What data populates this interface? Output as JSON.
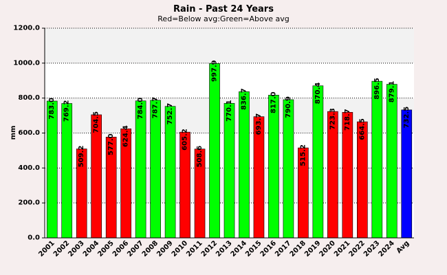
{
  "chart_data": {
    "type": "bar",
    "title": "Rain - Past 24 Years",
    "subtitle": "Red=Below avg:Green=Above avg",
    "xlabel": "",
    "ylabel": "mm",
    "ylim": [
      0,
      1200
    ],
    "yticks": [
      "0.0",
      "200.0",
      "400.0",
      "600.0",
      "800.0",
      "1000.0",
      "1200.0"
    ],
    "grid": true,
    "categories": [
      "2001",
      "2002",
      "2003",
      "2004",
      "2005",
      "2006",
      "2007",
      "2008",
      "2009",
      "2010",
      "2011",
      "2012",
      "2013",
      "2014",
      "2015",
      "2016",
      "2017",
      "2018",
      "2019",
      "2020",
      "2021",
      "2022",
      "2023",
      "2024",
      "Avg"
    ],
    "values": [
      783.0,
      769.2,
      509.2,
      704.5,
      577.0,
      624.4,
      784.0,
      787.7,
      752.7,
      605.2,
      508.6,
      997.9,
      770.1,
      836.7,
      693.7,
      817.0,
      790.9,
      515.2,
      870.4,
      723.3,
      718.7,
      664.5,
      896.5,
      879.1,
      732.5
    ],
    "value_labels": [
      "783.0",
      "769.2",
      "509.2",
      "704.5",
      "577.0",
      "624.4",
      "784.0",
      "787.7",
      "752.7",
      "605.2",
      "508.6",
      "997.9",
      "770.1",
      "836.7",
      "693.7",
      "817.0",
      "790.9",
      "515.2",
      "870.4",
      "723.3",
      "718.7",
      "664.5",
      "896.5",
      "879.1",
      "732.5"
    ],
    "colors": {
      "above": "#00ff00",
      "below": "#ff0000",
      "average": "#0000ff",
      "band_light": "#f2f2f2",
      "band_white": "#ffffff"
    }
  }
}
